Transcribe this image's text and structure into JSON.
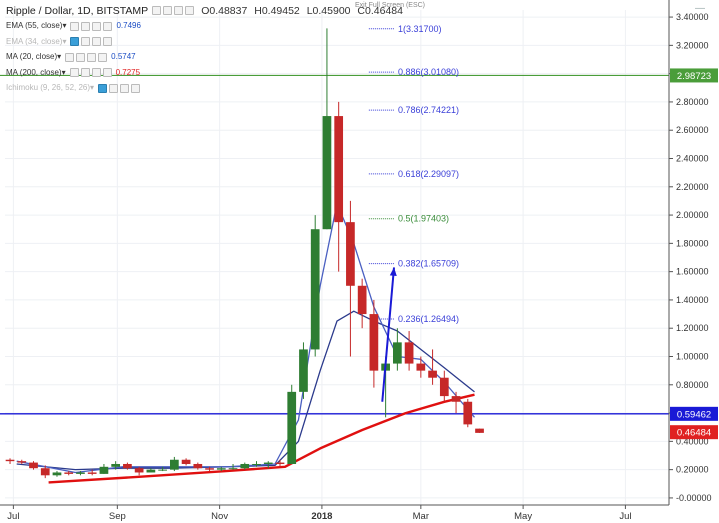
{
  "header": {
    "symbol_title": "Ripple / Dollar, 1D, BITSTAMP",
    "open": "O0.48837",
    "high": "H0.49452",
    "low": "L0.45900",
    "close": "C0.46484"
  },
  "exit_fullscreen": "Exit Full Screen (ESC)",
  "indicators": [
    {
      "label": "EMA (55, close)",
      "value": "0.7496",
      "value_color": "#1a4cc4",
      "dim": false
    },
    {
      "label": "EMA (34, close)",
      "value": "",
      "value_color": "#b7b7b7",
      "dim": true
    },
    {
      "label": "MA (20, close)",
      "value": "0.5747",
      "value_color": "#1a4cc4",
      "dim": false
    },
    {
      "label": "MA (200, close)",
      "value": "0.7275",
      "value_color": "#e02020",
      "dim": false
    },
    {
      "label": "Ichimoku (9, 26, 52, 26)",
      "value": "",
      "value_color": "#b7b7b7",
      "dim": true
    }
  ],
  "colors": {
    "up_candle": "#2e7d32",
    "down_candle": "#c62828",
    "ema55": "#2b3a8c",
    "ma20": "#4a5fc1",
    "ma200": "#e01010",
    "fib": "#3a3fd8",
    "fib_mid": "#3a8d3a",
    "support": "#1a1ad6",
    "resistance_tag": "#4a9d3a",
    "price_tag": "#e02020"
  },
  "chart_data": {
    "type": "candlestick",
    "title": "Ripple / Dollar, 1D, BITSTAMP",
    "ylim": [
      -0.05,
      3.45
    ],
    "y_ticks": [
      "3.40000",
      "3.20000",
      "3.00000",
      "2.80000",
      "2.60000",
      "2.40000",
      "2.20000",
      "2.00000",
      "1.80000",
      "1.60000",
      "1.40000",
      "1.20000",
      "1.00000",
      "0.80000",
      "0.60000",
      "0.40000",
      "0.20000",
      "-0.00000"
    ],
    "y_tick_values": [
      3.4,
      3.2,
      3.0,
      2.8,
      2.6,
      2.4,
      2.2,
      2.0,
      1.8,
      1.6,
      1.4,
      1.2,
      1.0,
      0.8,
      0.6,
      0.4,
      0.2,
      0.0
    ],
    "x_ticks": [
      "Jul",
      "Sep",
      "Nov",
      "2018",
      "Mar",
      "May",
      "Jul"
    ],
    "x_tick_values": [
      "2017-07-01",
      "2017-09-01",
      "2017-11-01",
      "2018-01-01",
      "2018-03-01",
      "2018-05-01",
      "2018-07-01"
    ],
    "date_range": [
      "2017-06-26",
      "2018-07-27"
    ],
    "last_bar_date": "2018-04-02",
    "price_labels": [
      {
        "text": "2.98723",
        "value": 2.98723,
        "kind": "resistance"
      },
      {
        "text": "0.59462",
        "value": 0.59462,
        "kind": "support"
      },
      {
        "text": "0.46484",
        "value": 0.46484,
        "kind": "last"
      }
    ],
    "fibonacci": {
      "start_date": "2018-01-29",
      "end_date": "2018-02-13",
      "levels": [
        {
          "label": "1(3.31700)",
          "value": 3.317
        },
        {
          "label": "0.886(3.01080)",
          "value": 3.0108
        },
        {
          "label": "0.786(2.74221)",
          "value": 2.74221
        },
        {
          "label": "0.618(2.29097)",
          "value": 2.29097
        },
        {
          "label": "0.5(1.97403)",
          "value": 1.97403
        },
        {
          "label": "0.382(1.65709)",
          "value": 1.65709
        },
        {
          "label": "0.236(1.26494)",
          "value": 1.26494
        }
      ]
    },
    "arrow": {
      "from": [
        "2018-02-06",
        0.68
      ],
      "to": [
        "2018-02-13",
        1.63
      ]
    },
    "ohlc_series": [
      [
        "2017-06-26",
        0.27,
        0.28,
        0.24,
        0.26
      ],
      [
        "2017-07-03",
        0.26,
        0.27,
        0.24,
        0.25
      ],
      [
        "2017-07-10",
        0.25,
        0.26,
        0.2,
        0.21
      ],
      [
        "2017-07-17",
        0.21,
        0.23,
        0.14,
        0.16
      ],
      [
        "2017-07-24",
        0.16,
        0.19,
        0.15,
        0.18
      ],
      [
        "2017-07-31",
        0.18,
        0.19,
        0.16,
        0.17
      ],
      [
        "2017-08-07",
        0.17,
        0.19,
        0.16,
        0.18
      ],
      [
        "2017-08-14",
        0.18,
        0.2,
        0.16,
        0.17
      ],
      [
        "2017-08-21",
        0.17,
        0.24,
        0.17,
        0.22
      ],
      [
        "2017-08-28",
        0.22,
        0.26,
        0.2,
        0.24
      ],
      [
        "2017-09-04",
        0.24,
        0.25,
        0.2,
        0.21
      ],
      [
        "2017-09-11",
        0.21,
        0.22,
        0.16,
        0.18
      ],
      [
        "2017-09-18",
        0.18,
        0.21,
        0.18,
        0.2
      ],
      [
        "2017-09-25",
        0.2,
        0.22,
        0.19,
        0.2
      ],
      [
        "2017-10-02",
        0.2,
        0.29,
        0.19,
        0.27
      ],
      [
        "2017-10-09",
        0.27,
        0.28,
        0.23,
        0.24
      ],
      [
        "2017-10-16",
        0.24,
        0.25,
        0.2,
        0.21
      ],
      [
        "2017-10-23",
        0.21,
        0.22,
        0.19,
        0.2
      ],
      [
        "2017-10-30",
        0.2,
        0.22,
        0.19,
        0.21
      ],
      [
        "2017-11-06",
        0.21,
        0.24,
        0.2,
        0.21
      ],
      [
        "2017-11-13",
        0.21,
        0.25,
        0.2,
        0.24
      ],
      [
        "2017-11-20",
        0.24,
        0.26,
        0.22,
        0.24
      ],
      [
        "2017-11-27",
        0.24,
        0.26,
        0.21,
        0.25
      ],
      [
        "2017-12-04",
        0.25,
        0.27,
        0.22,
        0.24
      ],
      [
        "2017-12-11",
        0.24,
        0.8,
        0.24,
        0.75
      ],
      [
        "2017-12-18",
        0.75,
        1.1,
        0.7,
        1.05
      ],
      [
        "2017-12-25",
        1.05,
        2.0,
        1.0,
        1.9
      ],
      [
        "2018-01-01",
        1.9,
        3.32,
        1.9,
        2.7
      ],
      [
        "2018-01-08",
        2.7,
        2.8,
        1.6,
        1.95
      ],
      [
        "2018-01-15",
        1.95,
        2.1,
        1.0,
        1.5
      ],
      [
        "2018-01-22",
        1.5,
        1.55,
        1.2,
        1.3
      ],
      [
        "2018-01-29",
        1.3,
        1.4,
        0.78,
        0.9
      ],
      [
        "2018-02-05",
        0.9,
        1.0,
        0.57,
        0.95
      ],
      [
        "2018-02-12",
        0.95,
        1.2,
        0.9,
        1.1
      ],
      [
        "2018-02-19",
        1.1,
        1.18,
        0.9,
        0.95
      ],
      [
        "2018-02-26",
        0.95,
        1.0,
        0.85,
        0.9
      ],
      [
        "2018-03-05",
        0.9,
        1.05,
        0.8,
        0.85
      ],
      [
        "2018-03-12",
        0.85,
        0.9,
        0.68,
        0.72
      ],
      [
        "2018-03-19",
        0.72,
        0.75,
        0.6,
        0.68
      ],
      [
        "2018-03-26",
        0.68,
        0.7,
        0.5,
        0.52
      ],
      [
        "2018-04-02",
        0.49,
        0.49,
        0.46,
        0.46
      ]
    ],
    "ema55_series": [
      [
        "2017-07-03",
        0.24
      ],
      [
        "2017-08-07",
        0.2
      ],
      [
        "2017-09-04",
        0.21
      ],
      [
        "2017-10-02",
        0.21
      ],
      [
        "2017-11-06",
        0.22
      ],
      [
        "2017-12-04",
        0.23
      ],
      [
        "2017-12-18",
        0.4
      ],
      [
        "2017-12-31",
        0.9
      ],
      [
        "2018-01-10",
        1.25
      ],
      [
        "2018-01-20",
        1.32
      ],
      [
        "2018-02-01",
        1.25
      ],
      [
        "2018-02-15",
        1.18
      ],
      [
        "2018-03-01",
        1.05
      ],
      [
        "2018-03-15",
        0.92
      ],
      [
        "2018-04-02",
        0.75
      ]
    ],
    "ma20_series": [
      [
        "2017-07-03",
        0.26
      ],
      [
        "2017-08-07",
        0.18
      ],
      [
        "2017-09-04",
        0.22
      ],
      [
        "2017-10-02",
        0.22
      ],
      [
        "2017-11-06",
        0.22
      ],
      [
        "2017-12-04",
        0.24
      ],
      [
        "2017-12-18",
        0.55
      ],
      [
        "2017-12-31",
        1.5
      ],
      [
        "2018-01-10",
        2.08
      ],
      [
        "2018-01-20",
        1.8
      ],
      [
        "2018-02-01",
        1.35
      ],
      [
        "2018-02-15",
        1.0
      ],
      [
        "2018-03-01",
        0.98
      ],
      [
        "2018-03-15",
        0.82
      ],
      [
        "2018-04-02",
        0.57
      ]
    ],
    "ma200_series": [
      [
        "2017-07-22",
        0.11
      ],
      [
        "2017-09-15",
        0.15
      ],
      [
        "2017-11-05",
        0.19
      ],
      [
        "2017-12-10",
        0.22
      ],
      [
        "2017-12-31",
        0.35
      ],
      [
        "2018-01-25",
        0.48
      ],
      [
        "2018-02-20",
        0.6
      ],
      [
        "2018-03-15",
        0.68
      ],
      [
        "2018-04-02",
        0.73
      ]
    ]
  }
}
